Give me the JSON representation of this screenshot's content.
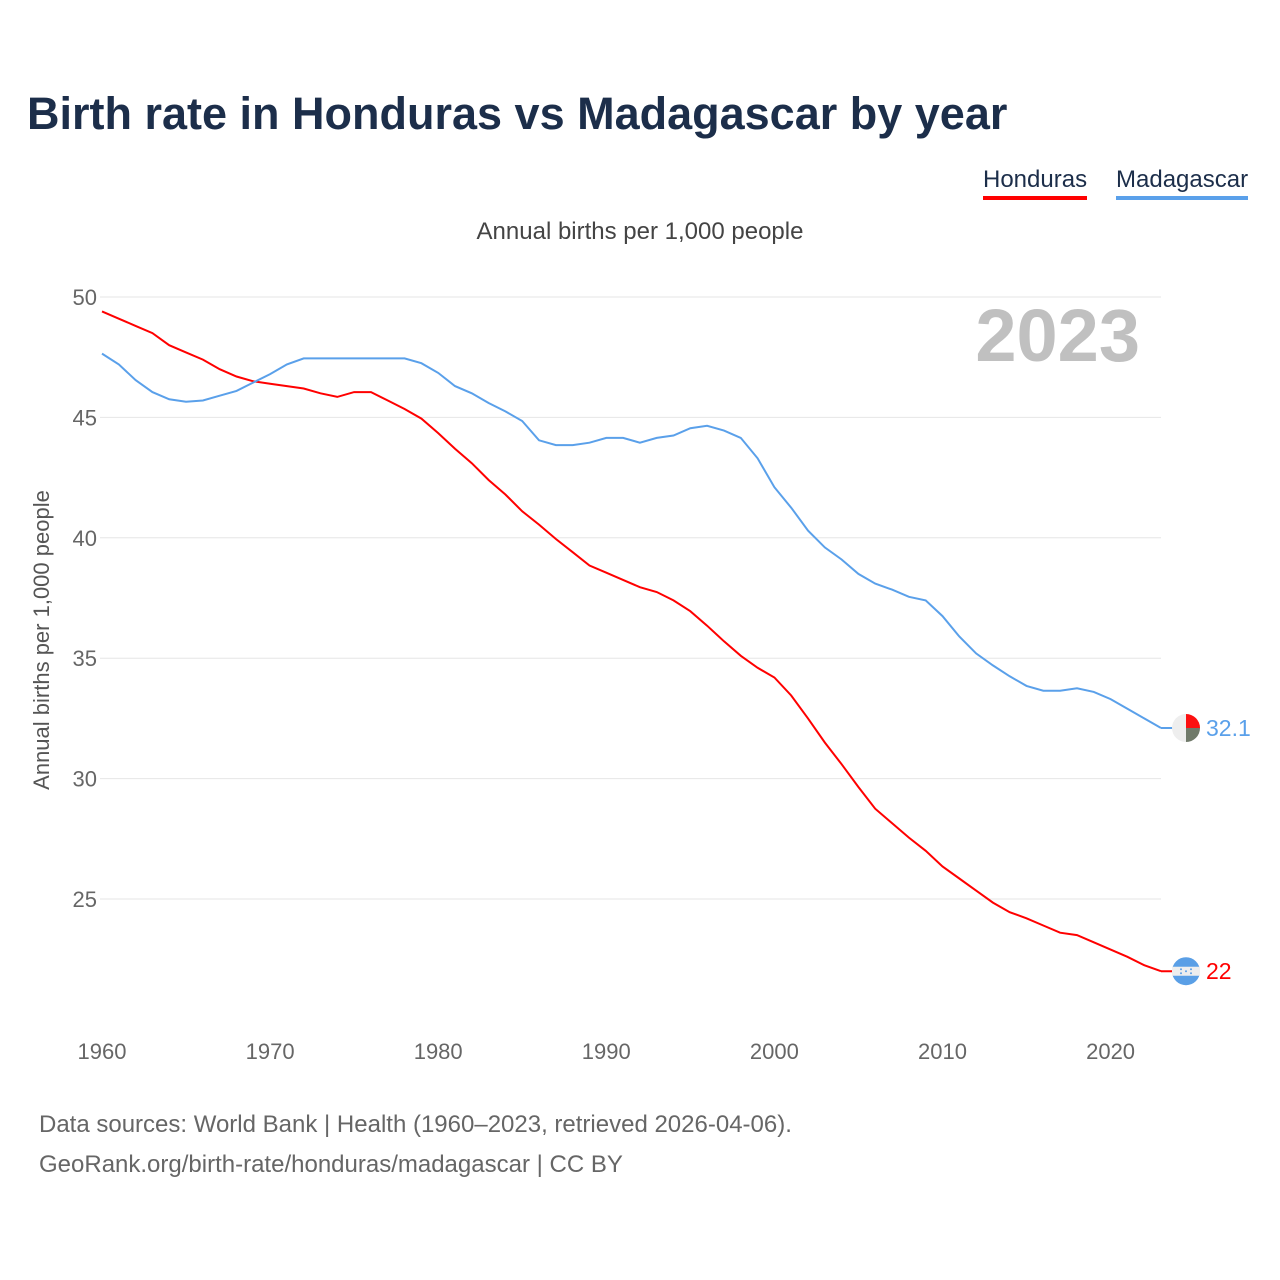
{
  "chart_data": {
    "type": "line",
    "title": "Birth rate in Honduras vs Madagascar by year",
    "subtitle": "Annual births per 1,000 people",
    "ylabel": "Annual births per 1,000 people",
    "xlabel": "",
    "ylim": [
      20,
      50
    ],
    "xlim": [
      1960,
      2023
    ],
    "yticks": [
      25,
      30,
      35,
      40,
      45,
      50
    ],
    "xticks": [
      1960,
      1970,
      1980,
      1990,
      2000,
      2010,
      2020
    ],
    "grid": true,
    "legend_position": "top-right",
    "year_label": "2023",
    "x": [
      1960,
      1961,
      1962,
      1963,
      1964,
      1965,
      1966,
      1967,
      1968,
      1969,
      1970,
      1971,
      1972,
      1973,
      1974,
      1975,
      1976,
      1977,
      1978,
      1979,
      1980,
      1981,
      1982,
      1983,
      1984,
      1985,
      1986,
      1987,
      1988,
      1989,
      1990,
      1991,
      1992,
      1993,
      1994,
      1995,
      1996,
      1997,
      1998,
      1999,
      2000,
      2001,
      2002,
      2003,
      2004,
      2005,
      2006,
      2007,
      2008,
      2009,
      2010,
      2011,
      2012,
      2013,
      2014,
      2015,
      2016,
      2017,
      2018,
      2019,
      2020,
      2021,
      2022,
      2023
    ],
    "series": [
      {
        "name": "Honduras",
        "color": "#ff0000",
        "end_label": "22",
        "values": [
          49.4,
          49.1,
          48.8,
          48.5,
          48.0,
          47.7,
          47.4,
          47.0,
          46.7,
          46.5,
          46.4,
          46.3,
          46.2,
          46.0,
          45.85,
          46.05,
          46.05,
          45.7,
          45.35,
          44.95,
          44.35,
          43.7,
          43.1,
          42.4,
          41.8,
          41.1,
          40.55,
          39.95,
          39.4,
          38.85,
          38.55,
          38.25,
          37.95,
          37.75,
          37.4,
          36.95,
          36.35,
          35.7,
          35.1,
          34.6,
          34.2,
          33.45,
          32.5,
          31.5,
          30.6,
          29.65,
          28.75,
          28.15,
          27.55,
          27.0,
          26.35,
          25.85,
          25.35,
          24.85,
          24.45,
          24.2,
          23.9,
          23.6,
          23.5,
          23.2,
          22.9,
          22.6,
          22.25,
          22.0
        ]
      },
      {
        "name": "Madagascar",
        "color": "#5aa0ea",
        "end_label": "32.1",
        "values": [
          47.65,
          47.2,
          46.55,
          46.05,
          45.75,
          45.65,
          45.7,
          45.9,
          46.1,
          46.45,
          46.8,
          47.2,
          47.45,
          47.45,
          47.45,
          47.45,
          47.45,
          47.45,
          47.45,
          47.25,
          46.85,
          46.3,
          46.0,
          45.6,
          45.25,
          44.85,
          44.05,
          43.85,
          43.85,
          43.95,
          44.15,
          44.15,
          43.95,
          44.15,
          44.25,
          44.55,
          44.65,
          44.45,
          44.15,
          43.3,
          42.1,
          41.25,
          40.3,
          39.6,
          39.1,
          38.5,
          38.1,
          37.85,
          37.55,
          37.4,
          36.75,
          35.9,
          35.2,
          34.7,
          34.25,
          33.85,
          33.65,
          33.65,
          33.75,
          33.6,
          33.3,
          32.9,
          32.5,
          32.1
        ]
      }
    ]
  },
  "footer": {
    "line1": "Data sources: World Bank | Health (1960–2023, retrieved 2026-04-06).",
    "line2": "GeoRank.org/birth-rate/honduras/madagascar | CC BY"
  }
}
